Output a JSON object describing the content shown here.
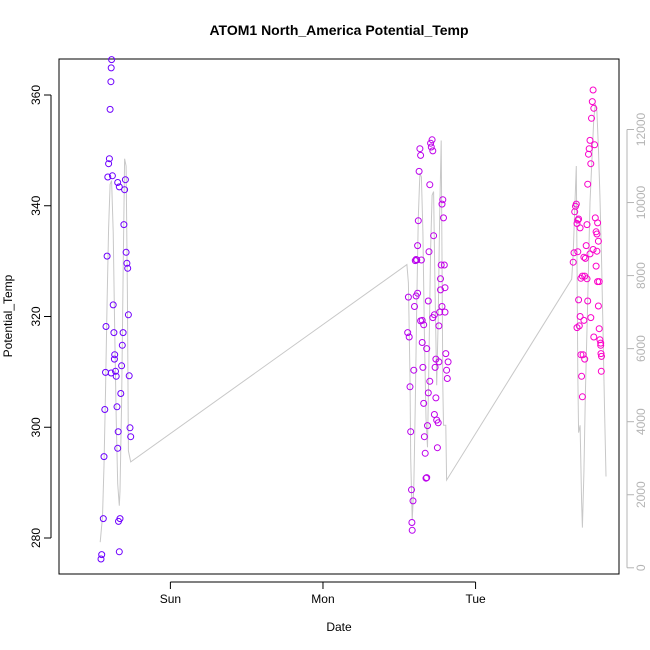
{
  "chart_data": {
    "type": "scatter",
    "title": "ATOM1 North_America Potential_Temp",
    "xlabel": "Date",
    "ylabel": "Potential_Temp",
    "x_ticks": [
      {
        "label": "Sun",
        "day": 1.0
      },
      {
        "label": "Mon",
        "day": 2.0
      },
      {
        "label": "Tue",
        "day": 3.0
      }
    ],
    "x_range_days": [
      0.27,
      3.94
    ],
    "y_left": {
      "ticks": [
        280,
        300,
        320,
        340,
        360
      ],
      "range": [
        273.5,
        366.5
      ]
    },
    "y_right": {
      "ticks": [
        0,
        2000,
        4000,
        6000,
        8000,
        10000,
        12000
      ],
      "range": [
        -170,
        13930
      ],
      "color": "#b4b4b4"
    },
    "grid": false,
    "legend": "none",
    "colors": {
      "early": "#6a00ff",
      "mid": "#b300f0",
      "late": "#ff00c8",
      "line": "#c8c8c8"
    },
    "altitude_line": [
      [
        0.54,
        700
      ],
      [
        0.555,
        1400
      ],
      [
        0.565,
        2800
      ],
      [
        0.575,
        4800
      ],
      [
        0.585,
        7300
      ],
      [
        0.595,
        9300
      ],
      [
        0.605,
        10500
      ],
      [
        0.615,
        10600
      ],
      [
        0.625,
        9200
      ],
      [
        0.635,
        6500
      ],
      [
        0.645,
        4100
      ],
      [
        0.655,
        2300
      ],
      [
        0.665,
        1700
      ],
      [
        0.67,
        2100
      ],
      [
        0.68,
        4500
      ],
      [
        0.69,
        8000
      ],
      [
        0.7,
        11200
      ],
      [
        0.71,
        11000
      ],
      [
        0.718,
        7500
      ],
      [
        0.725,
        3200
      ],
      [
        0.74,
        2900
      ],
      [
        2.55,
        8300
      ],
      [
        2.56,
        7800
      ],
      [
        2.57,
        5200
      ],
      [
        2.575,
        3000
      ],
      [
        2.585,
        1300
      ],
      [
        2.595,
        2200
      ],
      [
        2.605,
        4500
      ],
      [
        2.615,
        7300
      ],
      [
        2.625,
        9600
      ],
      [
        2.635,
        10800
      ],
      [
        2.645,
        10700
      ],
      [
        2.655,
        9200
      ],
      [
        2.665,
        6400
      ],
      [
        2.675,
        4100
      ],
      [
        2.685,
        3300
      ],
      [
        2.695,
        5800
      ],
      [
        2.705,
        8700
      ],
      [
        2.715,
        10200
      ],
      [
        2.725,
        10300
      ],
      [
        2.735,
        7500
      ],
      [
        2.745,
        5000
      ],
      [
        2.755,
        6800
      ],
      [
        2.765,
        9700
      ],
      [
        2.775,
        11700
      ],
      [
        2.78,
        8500
      ],
      [
        2.785,
        5000
      ],
      [
        2.79,
        3900
      ],
      [
        2.805,
        3900
      ],
      [
        2.81,
        2400
      ],
      [
        3.63,
        7900
      ],
      [
        3.64,
        8600
      ],
      [
        3.65,
        9800
      ],
      [
        3.66,
        11000
      ],
      [
        3.665,
        8500
      ],
      [
        3.67,
        5300
      ],
      [
        3.675,
        3700
      ],
      [
        3.685,
        3900
      ],
      [
        3.695,
        1800
      ],
      [
        3.7,
        1100
      ],
      [
        3.71,
        2600
      ],
      [
        3.72,
        4800
      ],
      [
        3.735,
        7300
      ],
      [
        3.75,
        10000
      ],
      [
        3.765,
        11400
      ],
      [
        3.775,
        12300
      ],
      [
        3.785,
        12700
      ],
      [
        3.795,
        12500
      ],
      [
        3.805,
        11500
      ],
      [
        3.815,
        10200
      ],
      [
        3.825,
        8500
      ],
      [
        3.835,
        6500
      ],
      [
        3.845,
        4400
      ],
      [
        3.855,
        2500
      ]
    ],
    "points": [
      [
        0.545,
        276.2
      ],
      [
        0.55,
        277.0
      ],
      [
        0.56,
        283.5
      ],
      [
        0.565,
        294.7
      ],
      [
        0.57,
        303.2
      ],
      [
        0.575,
        309.9
      ],
      [
        0.578,
        318.2
      ],
      [
        0.585,
        330.9
      ],
      [
        0.59,
        345.2
      ],
      [
        0.595,
        347.6
      ],
      [
        0.6,
        348.5
      ],
      [
        0.605,
        357.4
      ],
      [
        0.61,
        362.4
      ],
      [
        0.612,
        364.9
      ],
      [
        0.615,
        366.4
      ],
      [
        0.62,
        345.4
      ],
      [
        0.625,
        322.1
      ],
      [
        0.63,
        317.1
      ],
      [
        0.635,
        313.1
      ],
      [
        0.64,
        310.1
      ],
      [
        0.645,
        309.2
      ],
      [
        0.65,
        303.7
      ],
      [
        0.655,
        296.2
      ],
      [
        0.658,
        299.2
      ],
      [
        0.66,
        283.0
      ],
      [
        0.665,
        277.5
      ],
      [
        0.67,
        283.5
      ],
      [
        0.675,
        306.1
      ],
      [
        0.68,
        311.1
      ],
      [
        0.685,
        314.8
      ],
      [
        0.69,
        317.1
      ],
      [
        0.695,
        336.6
      ],
      [
        0.7,
        342.9
      ],
      [
        0.705,
        344.7
      ],
      [
        0.71,
        331.6
      ],
      [
        0.715,
        329.6
      ],
      [
        0.72,
        328.7
      ],
      [
        0.725,
        320.3
      ],
      [
        0.73,
        309.3
      ],
      [
        0.735,
        299.9
      ],
      [
        0.74,
        298.3
      ],
      [
        0.655,
        344.2
      ],
      [
        0.665,
        343.4
      ],
      [
        0.612,
        309.8
      ],
      [
        0.633,
        312.3
      ],
      [
        2.555,
        317.1
      ],
      [
        2.56,
        323.5
      ],
      [
        2.565,
        316.3
      ],
      [
        2.57,
        307.3
      ],
      [
        2.575,
        299.2
      ],
      [
        2.58,
        288.7
      ],
      [
        2.583,
        282.8
      ],
      [
        2.585,
        281.4
      ],
      [
        2.59,
        286.7
      ],
      [
        2.595,
        310.3
      ],
      [
        2.6,
        321.8
      ],
      [
        2.605,
        330.1
      ],
      [
        2.61,
        330.3
      ],
      [
        2.615,
        330.2
      ],
      [
        2.62,
        332.8
      ],
      [
        2.625,
        337.3
      ],
      [
        2.63,
        346.2
      ],
      [
        2.635,
        350.3
      ],
      [
        2.64,
        349.1
      ],
      [
        2.645,
        330.2
      ],
      [
        2.65,
        319.3
      ],
      [
        2.655,
        310.8
      ],
      [
        2.66,
        304.3
      ],
      [
        2.665,
        298.3
      ],
      [
        2.67,
        295.3
      ],
      [
        2.675,
        290.8
      ],
      [
        2.68,
        290.9
      ],
      [
        2.685,
        300.3
      ],
      [
        2.69,
        322.8
      ],
      [
        2.695,
        331.7
      ],
      [
        2.7,
        343.8
      ],
      [
        2.705,
        351.3
      ],
      [
        2.71,
        350.6
      ],
      [
        2.715,
        351.9
      ],
      [
        2.72,
        349.9
      ],
      [
        2.725,
        334.6
      ],
      [
        2.73,
        320.3
      ],
      [
        2.735,
        310.8
      ],
      [
        2.74,
        305.3
      ],
      [
        2.745,
        301.3
      ],
      [
        2.75,
        296.3
      ],
      [
        2.755,
        300.8
      ],
      [
        2.76,
        311.8
      ],
      [
        2.765,
        320.8
      ],
      [
        2.77,
        326.8
      ],
      [
        2.775,
        329.3
      ],
      [
        2.78,
        340.3
      ],
      [
        2.785,
        341.1
      ],
      [
        2.79,
        337.8
      ],
      [
        2.795,
        329.3
      ],
      [
        2.8,
        320.8
      ],
      [
        2.805,
        313.3
      ],
      [
        2.81,
        310.3
      ],
      [
        2.815,
        308.8
      ],
      [
        2.82,
        311.8
      ],
      [
        2.62,
        324.2
      ],
      [
        2.64,
        319.2
      ],
      [
        2.66,
        318.5
      ],
      [
        2.68,
        314.2
      ],
      [
        2.7,
        308.3
      ],
      [
        2.72,
        319.8
      ],
      [
        2.74,
        312.3
      ],
      [
        2.76,
        318.3
      ],
      [
        2.78,
        321.8
      ],
      [
        2.8,
        325.2
      ],
      [
        2.61,
        323.7
      ],
      [
        2.65,
        315.3
      ],
      [
        2.69,
        306.2
      ],
      [
        2.73,
        302.3
      ],
      [
        2.77,
        324.8
      ],
      [
        3.64,
        329.8
      ],
      [
        3.645,
        331.5
      ],
      [
        3.65,
        338.9
      ],
      [
        3.655,
        339.9
      ],
      [
        3.66,
        340.3
      ],
      [
        3.665,
        336.8
      ],
      [
        3.67,
        331.7
      ],
      [
        3.675,
        323.0
      ],
      [
        3.68,
        318.3
      ],
      [
        3.685,
        320.0
      ],
      [
        3.69,
        313.1
      ],
      [
        3.695,
        309.2
      ],
      [
        3.7,
        305.5
      ],
      [
        3.705,
        313.1
      ],
      [
        3.71,
        319.3
      ],
      [
        3.715,
        327.3
      ],
      [
        3.72,
        330.5
      ],
      [
        3.725,
        332.8
      ],
      [
        3.73,
        336.6
      ],
      [
        3.735,
        343.9
      ],
      [
        3.74,
        349.3
      ],
      [
        3.745,
        350.3
      ],
      [
        3.75,
        351.8
      ],
      [
        3.755,
        347.6
      ],
      [
        3.76,
        355.8
      ],
      [
        3.765,
        358.8
      ],
      [
        3.77,
        360.9
      ],
      [
        3.775,
        357.6
      ],
      [
        3.78,
        351.0
      ],
      [
        3.785,
        337.8
      ],
      [
        3.79,
        335.3
      ],
      [
        3.795,
        331.8
      ],
      [
        3.8,
        326.3
      ],
      [
        3.805,
        321.9
      ],
      [
        3.81,
        317.8
      ],
      [
        3.815,
        315.8
      ],
      [
        3.82,
        314.8
      ],
      [
        3.825,
        312.8
      ],
      [
        3.67,
        337.4
      ],
      [
        3.69,
        326.9
      ],
      [
        3.7,
        327.3
      ],
      [
        3.71,
        330.7
      ],
      [
        3.73,
        326.8
      ],
      [
        3.75,
        331.3
      ],
      [
        3.77,
        332.1
      ],
      [
        3.79,
        329.1
      ],
      [
        3.81,
        326.3
      ],
      [
        3.805,
        333.6
      ],
      [
        3.795,
        334.9
      ],
      [
        3.8,
        336.9
      ],
      [
        3.675,
        337.6
      ],
      [
        3.685,
        336.0
      ],
      [
        3.665,
        318.0
      ],
      [
        3.715,
        312.3
      ],
      [
        3.735,
        322.8
      ],
      [
        3.755,
        319.8
      ],
      [
        3.775,
        316.3
      ],
      [
        3.82,
        315.2
      ],
      [
        3.822,
        313.3
      ],
      [
        3.824,
        310.1
      ]
    ]
  }
}
